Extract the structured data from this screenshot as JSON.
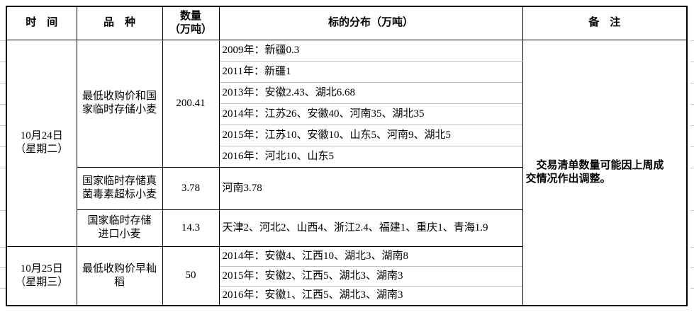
{
  "colors": {
    "border_black": "#000000",
    "grid_light": "#bfbfbf",
    "text": "#000000",
    "background": "#ffffff"
  },
  "header": {
    "time": "时　间",
    "variety": "品　种",
    "quantity": "数量\n（万吨）",
    "distribution": "标的分布（万吨）",
    "remark": "备　注"
  },
  "body": {
    "day1": {
      "time": "10月24日\n（星期二）",
      "varieties": [
        {
          "name": "最低收购价和国\n家临时存储小麦",
          "quantity": "200.41",
          "distribution": [
            "2009年：新疆0.3",
            "2011年：新疆1",
            "2013年：安徽2.43、湖北6.68",
            "2014年：江苏26、安徽40、河南35、湖北35",
            "2015年：江苏10、安徽10、山东5、河南9、湖北5",
            "2016年：河北10、山东5"
          ]
        },
        {
          "name": "国家临时存储真\n菌毒素超标小麦",
          "quantity": "3.78",
          "distribution": [
            "河南3.78"
          ]
        },
        {
          "name": "国家临时存储\n进口小麦",
          "quantity": "14.3",
          "distribution": [
            "天津2、河北2、山西4、浙江2.4、福建1、重庆1、青海1.9"
          ]
        }
      ]
    },
    "day2": {
      "time": "10月25日\n（星期三）",
      "varieties": [
        {
          "name": "最低收购价早籼\n稻",
          "quantity": "50",
          "distribution": [
            "2014年：安徽4、江西10、湖北3、湖南8",
            "2015年：安徽2、江西5、湖北3、湖南3",
            "2016年：安徽1、江西5、湖北3、湖南3"
          ]
        }
      ]
    },
    "remark": "　交易清单数量可能因上周成\n交情况作出调整。"
  }
}
